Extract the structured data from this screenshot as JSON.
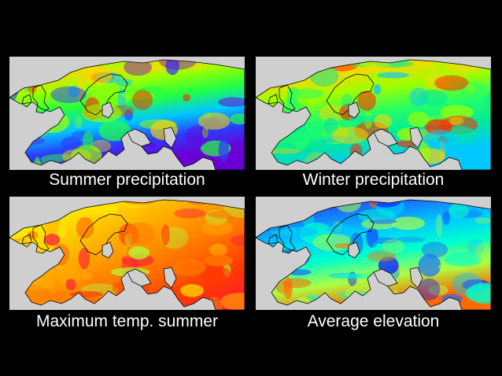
{
  "panels": [
    {
      "id": "summer-precipitation",
      "caption": "Summer precipitation",
      "gradient": [
        "#ff2a00",
        "#ffd400",
        "#9dff00",
        "#22ff44",
        "#00c8ff",
        "#2a3cff",
        "#6b00d6"
      ],
      "base": "#7cf000",
      "sea": "#cfcfcf"
    },
    {
      "id": "winter-precipitation",
      "caption": "Winter precipitation",
      "gradient": [
        "#ff2a00",
        "#ffd400",
        "#9dff00",
        "#22ff66",
        "#00e6a0",
        "#00c8ff"
      ],
      "base": "#2cf06a",
      "sea": "#cfcfcf"
    },
    {
      "id": "maximum-temp-summer",
      "caption": "Maximum temp. summer",
      "gradient": [
        "#b0ff3c",
        "#ffe600",
        "#ffb000",
        "#ff7a00",
        "#ff3a00",
        "#ff1a3a"
      ],
      "base": "#ffa000",
      "sea": "#cfcfcf"
    },
    {
      "id": "average-elevation",
      "caption": "Average elevation",
      "gradient": [
        "#1010ff",
        "#1a6bff",
        "#00c8ff",
        "#00ffcc",
        "#aaff44",
        "#ff6a00"
      ],
      "base": "#1a32ff",
      "sea": "#cfcfcf"
    }
  ]
}
